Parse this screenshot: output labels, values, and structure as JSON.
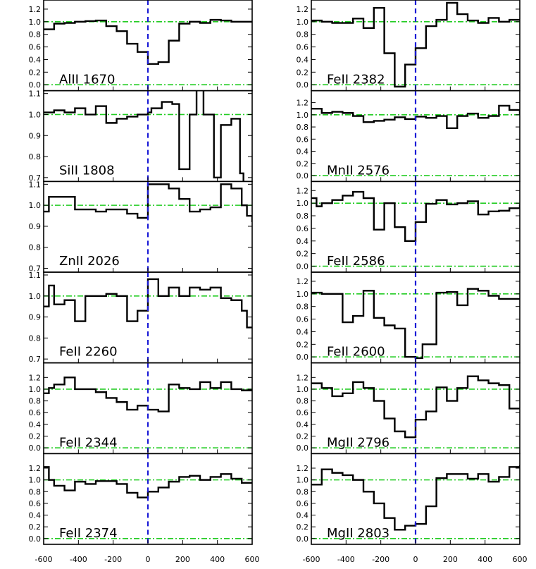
{
  "colors": {
    "spectrum": "#000000",
    "reference": "#22cc22",
    "zero_velocity": "#1a1ad6"
  },
  "chart_data": {
    "type": "line",
    "layout": "grid 6 rows x 2 columns",
    "x_ticks": [
      "-600",
      "-400",
      "-200",
      "0",
      "200",
      "400",
      "600"
    ],
    "xlim": [
      -600,
      600
    ],
    "zero_velocity_marker": 0,
    "panels": [
      {
        "id": "alii1670",
        "label": "AlII 1670",
        "col": 0,
        "row": 0,
        "ylim": [
          -0.05,
          1.3
        ],
        "yticks": [
          0.0,
          0.2,
          0.4,
          0.6,
          0.8,
          1.0,
          1.2
        ],
        "ytick_labels": [
          "0.0",
          "0.2",
          "0.4",
          "0.6",
          "0.8",
          "1.0",
          "1.2"
        ],
        "references": [
          1.0,
          0.0
        ],
        "x": [
          -600,
          -540,
          -480,
          -420,
          -360,
          -300,
          -240,
          -180,
          -120,
          -60,
          0,
          60,
          120,
          180,
          240,
          300,
          360,
          420,
          480,
          540,
          600
        ],
        "y": [
          0.88,
          0.97,
          0.98,
          1.0,
          1.01,
          1.02,
          0.93,
          0.85,
          0.65,
          0.52,
          0.33,
          0.36,
          0.7,
          0.97,
          1.0,
          0.98,
          1.03,
          1.02,
          1.0,
          1.0,
          1.0
        ]
      },
      {
        "id": "feii2382",
        "label": "FeII 2382",
        "col": 1,
        "row": 0,
        "ylim": [
          -0.05,
          1.3
        ],
        "yticks": [
          0.0,
          0.2,
          0.4,
          0.6,
          0.8,
          1.0,
          1.2
        ],
        "ytick_labels": [
          "0.0",
          "0.2",
          "0.4",
          "0.6",
          "0.8",
          "1.0",
          "1.2"
        ],
        "references": [
          1.0,
          0.0
        ],
        "x": [
          -600,
          -540,
          -480,
          -420,
          -360,
          -300,
          -240,
          -180,
          -120,
          -60,
          0,
          60,
          120,
          180,
          240,
          300,
          360,
          420,
          480,
          540,
          600
        ],
        "y": [
          1.02,
          1.0,
          0.98,
          0.98,
          1.05,
          0.9,
          1.22,
          0.5,
          -0.03,
          0.32,
          0.58,
          0.93,
          1.03,
          1.3,
          1.12,
          1.02,
          0.98,
          1.06,
          1.0,
          1.03,
          1.03
        ]
      },
      {
        "id": "siii1808",
        "label": "SiII 1808",
        "col": 0,
        "row": 1,
        "ylim": [
          0.695,
          1.1
        ],
        "yticks": [
          0.7,
          0.8,
          0.9,
          1.0,
          1.1
        ],
        "ytick_labels": [
          "0.7",
          "0.8",
          "0.9",
          "1.0",
          "1.1"
        ],
        "references": [
          1.0
        ],
        "x": [
          -600,
          -540,
          -480,
          -420,
          -360,
          -300,
          -240,
          -180,
          -120,
          -60,
          0,
          20,
          80,
          140,
          180,
          240,
          280,
          320,
          380,
          420,
          480,
          530,
          550,
          600
        ],
        "y": [
          1.01,
          1.02,
          1.01,
          1.03,
          1.0,
          1.04,
          0.96,
          0.98,
          0.99,
          1.0,
          1.01,
          1.03,
          1.06,
          1.05,
          0.74,
          1.0,
          1.12,
          1.0,
          0.7,
          0.95,
          0.98,
          0.72,
          0.68,
          0.68
        ]
      },
      {
        "id": "mnii2576",
        "label": "MnII 2576",
        "col": 1,
        "row": 1,
        "ylim": [
          -0.05,
          1.35
        ],
        "yticks": [
          0.0,
          0.2,
          0.4,
          0.6,
          0.8,
          1.0,
          1.2
        ],
        "ytick_labels": [
          "0.0",
          "0.2",
          "0.4",
          "0.6",
          "0.8",
          "1.0",
          "1.2"
        ],
        "references": [
          1.0,
          0.0
        ],
        "x": [
          -600,
          -540,
          -480,
          -420,
          -360,
          -300,
          -240,
          -180,
          -120,
          -60,
          0,
          60,
          120,
          180,
          240,
          300,
          360,
          420,
          480,
          540,
          600
        ],
        "y": [
          1.1,
          1.03,
          1.05,
          1.03,
          0.98,
          0.88,
          0.9,
          0.92,
          0.96,
          0.93,
          0.97,
          0.95,
          0.98,
          0.78,
          0.98,
          1.02,
          0.95,
          0.98,
          1.15,
          1.08,
          1.0
        ]
      },
      {
        "id": "znii2026",
        "label": "ZnII 2026",
        "col": 0,
        "row": 2,
        "ylim": [
          0.695,
          1.1
        ],
        "yticks": [
          0.7,
          0.8,
          0.9,
          1.0,
          1.1
        ],
        "ytick_labels": [
          "0.7",
          "0.8",
          "0.9",
          "1.0",
          "1.1"
        ],
        "references": [
          1.0
        ],
        "x": [
          -600,
          -570,
          -540,
          -480,
          -420,
          -360,
          -300,
          -240,
          -180,
          -120,
          -60,
          0,
          120,
          180,
          240,
          300,
          360,
          420,
          480,
          540,
          570,
          600
        ],
        "y": [
          0.97,
          1.04,
          1.04,
          1.04,
          0.98,
          0.98,
          0.97,
          0.98,
          0.98,
          0.96,
          0.94,
          1.1,
          1.08,
          1.03,
          0.97,
          0.98,
          0.99,
          1.1,
          1.08,
          1.0,
          0.95,
          0.92
        ]
      },
      {
        "id": "feii2586",
        "label": "FeII 2586",
        "col": 1,
        "row": 2,
        "ylim": [
          -0.05,
          1.3
        ],
        "yticks": [
          0.0,
          0.2,
          0.4,
          0.6,
          0.8,
          1.0,
          1.2
        ],
        "ytick_labels": [
          "0.0",
          "0.2",
          "0.4",
          "0.6",
          "0.8",
          "1.0",
          "1.2"
        ],
        "references": [
          1.0,
          0.0
        ],
        "x": [
          -600,
          -570,
          -540,
          -480,
          -420,
          -360,
          -300,
          -240,
          -180,
          -120,
          -60,
          0,
          60,
          120,
          180,
          240,
          300,
          360,
          420,
          480,
          540,
          600
        ],
        "y": [
          1.08,
          0.95,
          1.0,
          1.05,
          1.12,
          1.18,
          1.08,
          0.58,
          1.0,
          0.62,
          0.4,
          0.7,
          0.99,
          1.05,
          0.98,
          1.0,
          1.03,
          0.82,
          0.87,
          0.88,
          0.92,
          0.98
        ]
      },
      {
        "id": "feii2260",
        "label": "FeII 2260",
        "col": 0,
        "row": 3,
        "ylim": [
          0.695,
          1.1
        ],
        "yticks": [
          0.7,
          0.8,
          0.9,
          1.0,
          1.1
        ],
        "ytick_labels": [
          "0.7",
          "0.8",
          "0.9",
          "1.0",
          "1.1"
        ],
        "references": [
          1.0
        ],
        "x": [
          -600,
          -570,
          -540,
          -480,
          -420,
          -360,
          -300,
          -240,
          -180,
          -120,
          -60,
          0,
          60,
          120,
          180,
          240,
          300,
          360,
          420,
          480,
          540,
          570,
          600
        ],
        "y": [
          0.95,
          1.05,
          0.96,
          0.98,
          0.88,
          1.0,
          1.0,
          1.01,
          1.0,
          0.88,
          0.93,
          1.08,
          1.0,
          1.04,
          1.0,
          1.04,
          1.03,
          1.04,
          0.99,
          0.98,
          0.93,
          0.85,
          0.85
        ]
      },
      {
        "id": "feii2600",
        "label": "FeII 2600",
        "col": 1,
        "row": 3,
        "ylim": [
          -0.05,
          1.3
        ],
        "yticks": [
          0.0,
          0.2,
          0.4,
          0.6,
          0.8,
          1.0,
          1.2
        ],
        "ytick_labels": [
          "0.0",
          "0.2",
          "0.4",
          "0.6",
          "0.8",
          "1.0",
          "1.2"
        ],
        "references": [
          1.0,
          0.0
        ],
        "x": [
          -600,
          -540,
          -480,
          -420,
          -360,
          -300,
          -240,
          -180,
          -120,
          -60,
          0,
          40,
          60,
          120,
          180,
          240,
          300,
          360,
          420,
          480,
          540,
          600
        ],
        "y": [
          1.02,
          1.0,
          1.0,
          0.55,
          0.65,
          1.05,
          0.62,
          0.5,
          0.45,
          0.0,
          -0.02,
          0.2,
          0.2,
          1.02,
          1.03,
          0.82,
          1.08,
          1.05,
          0.97,
          0.92,
          0.92,
          0.92
        ]
      },
      {
        "id": "feii2344",
        "label": "FeII 2344",
        "col": 0,
        "row": 4,
        "ylim": [
          -0.05,
          1.4
        ],
        "yticks": [
          0.0,
          0.2,
          0.4,
          0.6,
          0.8,
          1.0,
          1.2
        ],
        "ytick_labels": [
          "0.0",
          "0.2",
          "0.4",
          "0.6",
          "0.8",
          "1.0",
          "1.2"
        ],
        "references": [
          1.0,
          0.0
        ],
        "x": [
          -600,
          -570,
          -540,
          -480,
          -420,
          -360,
          -300,
          -240,
          -180,
          -120,
          -60,
          0,
          60,
          120,
          180,
          240,
          300,
          360,
          420,
          480,
          540,
          600
        ],
        "y": [
          0.93,
          1.02,
          1.08,
          1.2,
          1.0,
          1.0,
          0.95,
          0.85,
          0.78,
          0.65,
          0.72,
          0.65,
          0.62,
          1.08,
          1.02,
          1.0,
          1.12,
          1.02,
          1.12,
          1.0,
          0.98,
          0.98
        ]
      },
      {
        "id": "mgii2796",
        "label": "MgII 2796",
        "col": 1,
        "row": 4,
        "ylim": [
          -0.05,
          1.4
        ],
        "yticks": [
          0.0,
          0.2,
          0.4,
          0.6,
          0.8,
          1.0,
          1.2
        ],
        "ytick_labels": [
          "0.0",
          "0.2",
          "0.4",
          "0.6",
          "0.8",
          "1.0",
          "1.2"
        ],
        "references": [
          1.0,
          0.0
        ],
        "x": [
          -600,
          -540,
          -480,
          -420,
          -360,
          -300,
          -240,
          -180,
          -120,
          -60,
          0,
          60,
          120,
          180,
          240,
          300,
          360,
          420,
          480,
          540,
          600
        ],
        "y": [
          1.1,
          1.02,
          0.88,
          0.93,
          1.12,
          1.02,
          0.8,
          0.5,
          0.28,
          0.18,
          0.48,
          0.62,
          1.03,
          0.8,
          1.02,
          1.22,
          1.15,
          1.1,
          1.07,
          0.67,
          0.67
        ]
      },
      {
        "id": "feii2374",
        "label": "FeII 2374",
        "col": 0,
        "row": 5,
        "ylim": [
          -0.05,
          1.4
        ],
        "yticks": [
          0.0,
          0.2,
          0.4,
          0.6,
          0.8,
          1.0,
          1.2
        ],
        "ytick_labels": [
          "0.0",
          "0.2",
          "0.4",
          "0.6",
          "0.8",
          "1.0",
          "1.2"
        ],
        "references": [
          1.0,
          0.0
        ],
        "x": [
          -600,
          -570,
          -540,
          -480,
          -420,
          -360,
          -300,
          -240,
          -180,
          -120,
          -60,
          0,
          60,
          120,
          180,
          240,
          300,
          360,
          420,
          480,
          540,
          600
        ],
        "y": [
          1.22,
          1.0,
          0.9,
          0.82,
          0.97,
          0.93,
          0.98,
          0.98,
          0.93,
          0.78,
          0.7,
          0.8,
          0.87,
          0.97,
          1.05,
          1.07,
          1.0,
          1.05,
          1.1,
          1.02,
          0.95,
          0.95
        ]
      },
      {
        "id": "mgii2803",
        "label": "MgII 2803",
        "col": 1,
        "row": 5,
        "ylim": [
          -0.05,
          1.4
        ],
        "yticks": [
          0.0,
          0.2,
          0.4,
          0.6,
          0.8,
          1.0,
          1.2
        ],
        "ytick_labels": [
          "0.0",
          "0.2",
          "0.4",
          "0.6",
          "0.8",
          "1.0",
          "1.2"
        ],
        "references": [
          1.0,
          0.0
        ],
        "x": [
          -600,
          -540,
          -480,
          -420,
          -360,
          -300,
          -240,
          -180,
          -120,
          -60,
          0,
          60,
          120,
          180,
          240,
          300,
          360,
          420,
          480,
          540,
          600
        ],
        "y": [
          0.92,
          1.18,
          1.12,
          1.08,
          1.0,
          0.8,
          0.6,
          0.35,
          0.15,
          0.22,
          0.25,
          0.55,
          1.03,
          1.1,
          1.1,
          1.02,
          1.1,
          0.97,
          1.05,
          1.22,
          1.25
        ]
      }
    ]
  }
}
